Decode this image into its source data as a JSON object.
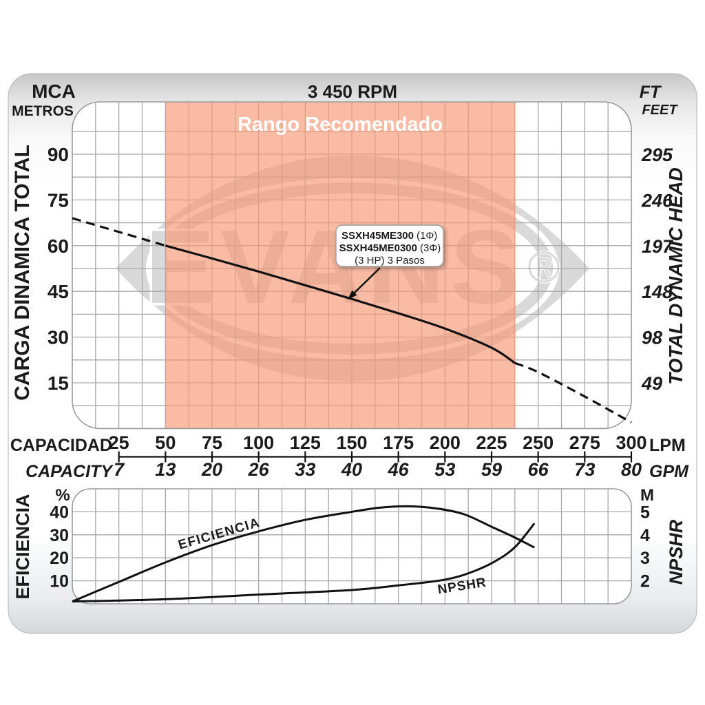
{
  "header": {
    "rpm_title": "3 450 RPM",
    "left_unit_primary": "MCA",
    "left_unit_secondary": "METROS",
    "right_unit_primary": "FT",
    "right_unit_secondary": "FEET"
  },
  "watermark": {
    "brand": "EVANS",
    "registered": "®"
  },
  "top_chart": {
    "recommended_label": "Rango Recomendado",
    "y_left_axis_label": "CARGA  DINAMICA  TOTAL",
    "y_right_axis_label": "TOTAL  DYNAMIC  HEAD",
    "y_left_ticks": [
      90,
      75,
      60,
      45,
      30,
      15
    ],
    "y_right_ticks": [
      295,
      246,
      197,
      148,
      98,
      49
    ]
  },
  "x_axis": {
    "label_primary": "CAPACIDAD",
    "label_secondary": "CAPACITY",
    "unit_primary": "LPM",
    "unit_secondary": "GPM",
    "lpm_ticks": [
      25,
      50,
      75,
      100,
      125,
      150,
      175,
      200,
      225,
      250,
      275,
      300
    ],
    "gpm_ticks": [
      7,
      13,
      20,
      26,
      33,
      40,
      46,
      53,
      59,
      66,
      73,
      80
    ]
  },
  "bottom_chart": {
    "y_left_axis_label": "EFICIENCIA",
    "y_left_unit": "%",
    "y_left_ticks": [
      40,
      30,
      20,
      10
    ],
    "y_right_axis_label": "NPSHR",
    "y_right_unit": "M",
    "y_right_ticks": [
      5,
      4,
      3,
      2
    ],
    "eff_curve_label": "EFICIENCIA",
    "npshr_curve_label": "NPSHR"
  },
  "annotation": {
    "line1_model": "SSXH45ME300",
    "line1_suffix": "(1Φ)",
    "line2_model": "SSXH45ME0300",
    "line2_suffix": "(3Φ)",
    "line3": "(3 HP) 3 Pasos"
  },
  "colors": {
    "recommended_band": "rgba(247,150,115,0.65)",
    "watermark_gray": "#d9d9d9",
    "grid_line": "#a8a8a8",
    "plot_border": "#9a9a9a",
    "curve": "#111111"
  },
  "chart_data": [
    {
      "type": "line",
      "title": "3 450 RPM",
      "xlabel": "CAPACIDAD / CAPACITY",
      "x_units": [
        "LPM",
        "GPM"
      ],
      "ylabel_left": "CARGA DINAMICA TOTAL (MCA METROS)",
      "ylabel_right": "TOTAL DYNAMIC HEAD (FT FEET)",
      "x_ticks_lpm": [
        25,
        50,
        75,
        100,
        125,
        150,
        175,
        200,
        225,
        250,
        275,
        300
      ],
      "x_ticks_gpm": [
        7,
        13,
        20,
        26,
        33,
        40,
        46,
        53,
        59,
        66,
        73,
        80
      ],
      "y_ticks_m": [
        15,
        30,
        45,
        60,
        75,
        90
      ],
      "y_ticks_ft": [
        49,
        98,
        148,
        197,
        246,
        295
      ],
      "xlim_lpm": [
        0,
        300
      ],
      "ylim_m": [
        0,
        105
      ],
      "grid": true,
      "recommended_range_lpm": [
        50,
        237.5
      ],
      "series": [
        {
          "name": "SSXH45ME300 (1Φ) / SSXH45ME0300 (3Φ) (3 HP) 3 Pasos",
          "x_lpm": [
            0,
            25,
            50,
            75,
            100,
            125,
            150,
            175,
            200,
            225,
            237.5,
            250,
            275,
            300
          ],
          "head_m": [
            69,
            64.5,
            60,
            55.8,
            51.5,
            47,
            42.5,
            37.8,
            32.8,
            26.5,
            21.5,
            18.5,
            10.5,
            2
          ],
          "style": "solid inside recommended range, dashed outside"
        }
      ]
    },
    {
      "type": "line",
      "xlabel": "CAPACIDAD / CAPACITY (shared axis)",
      "ylabel_left": "EFICIENCIA (%)",
      "ylabel_right": "NPSHR (M)",
      "y_ticks_pct": [
        10,
        20,
        30,
        40
      ],
      "y_ticks_m": [
        2,
        3,
        4,
        5
      ],
      "ylim_pct": [
        0,
        50
      ],
      "ylim_m": [
        1,
        6
      ],
      "grid": true,
      "series": [
        {
          "name": "EFICIENCIA",
          "x_lpm": [
            0,
            25,
            50,
            75,
            100,
            125,
            150,
            165,
            180,
            195,
            210,
            225,
            237,
            248
          ],
          "eff_pct": [
            1,
            9.5,
            18,
            25.5,
            31.5,
            36.5,
            40,
            41.8,
            42.4,
            41.5,
            39,
            33.5,
            29,
            24.5
          ]
        },
        {
          "name": "NPSHR",
          "x_lpm": [
            0,
            50,
            100,
            150,
            175,
            200,
            215,
            228,
            238,
            248
          ],
          "npshr_m": [
            1.1,
            1.2,
            1.4,
            1.6,
            1.8,
            2.05,
            2.4,
            2.9,
            3.5,
            4.5
          ]
        }
      ]
    }
  ]
}
